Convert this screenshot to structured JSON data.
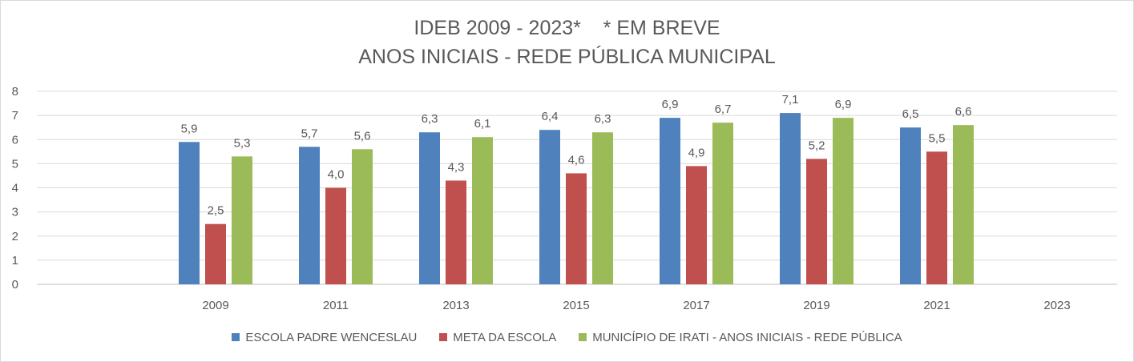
{
  "chart_data": {
    "type": "bar",
    "title_line1": "IDEB 2009 - 2023*    * EM BREVE",
    "title_line2": "ANOS INICIAIS - REDE PÚBLICA MUNICIPAL",
    "xlabel": "",
    "ylabel": "",
    "ylim": [
      0,
      8
    ],
    "yticks": [
      "0",
      "1",
      "2",
      "3",
      "4",
      "5",
      "6",
      "7",
      "8"
    ],
    "grid": true,
    "legend_position": "bottom",
    "categories": [
      "2009",
      "2011",
      "2013",
      "2015",
      "2017",
      "2019",
      "2021",
      "2023"
    ],
    "series": [
      {
        "name": "ESCOLA PADRE WENCESLAU",
        "color": "#4f81bd",
        "values": [
          5.9,
          5.7,
          6.3,
          6.4,
          6.9,
          7.1,
          6.5,
          null
        ],
        "labels": [
          "5,9",
          "5,7",
          "6,3",
          "6,4",
          "6,9",
          "7,1",
          "6,5",
          ""
        ]
      },
      {
        "name": "META DA ESCOLA",
        "color": "#c0504d",
        "values": [
          2.5,
          4.0,
          4.3,
          4.6,
          4.9,
          5.2,
          5.5,
          null
        ],
        "labels": [
          "2,5",
          "4,0",
          "4,3",
          "4,6",
          "4,9",
          "5,2",
          "5,5",
          ""
        ]
      },
      {
        "name": "MUNICÍPIO DE IRATI - ANOS INICIAIS - REDE PÚBLICA",
        "color": "#9bbb59",
        "values": [
          5.3,
          5.6,
          6.1,
          6.3,
          6.7,
          6.9,
          6.6,
          null
        ],
        "labels": [
          "5,3",
          "5,6",
          "6,1",
          "6,3",
          "6,7",
          "6,9",
          "6,6",
          ""
        ]
      }
    ]
  }
}
